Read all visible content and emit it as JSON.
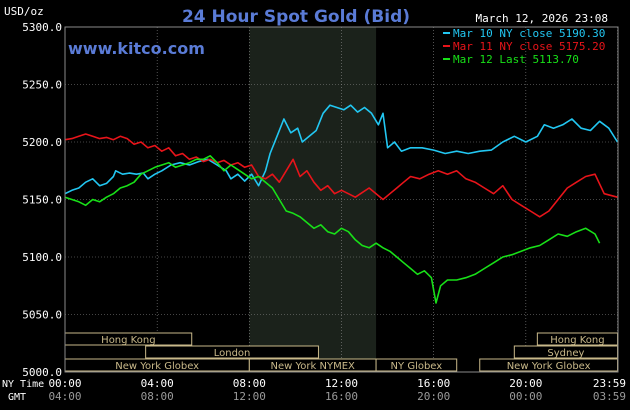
{
  "header": {
    "units": "USD/oz",
    "title": "24 Hour Spot Gold (Bid)",
    "timestamp": "March 12, 2026 23:08",
    "site": "www.kitco.com"
  },
  "colors": {
    "background": "#000000",
    "grid": "#8a8a8a",
    "text": "#ffffff",
    "title": "#5a7bd6",
    "site": "#5a7bd6",
    "highlight": "#1b221b",
    "session_fill": "#000000",
    "session_border": "#c9b98a",
    "session_text": "#c9b98a"
  },
  "chart_data": {
    "type": "line",
    "ylim": [
      5000,
      5300
    ],
    "xlim": [
      0,
      24
    ],
    "yticks": [
      {
        "value": 5000,
        "label": "5000.0"
      },
      {
        "value": 5050,
        "label": "5050.0"
      },
      {
        "value": 5100,
        "label": "5100.0"
      },
      {
        "value": 5150,
        "label": "5150.0"
      },
      {
        "value": 5200,
        "label": "5200.0"
      },
      {
        "value": 5250,
        "label": "5250.0"
      },
      {
        "value": 5300,
        "label": "5300.0"
      }
    ],
    "xticks": [
      {
        "hour": 0,
        "ny": "00:00",
        "gmt": "04:00"
      },
      {
        "hour": 4,
        "ny": "04:00",
        "gmt": "08:00"
      },
      {
        "hour": 8,
        "ny": "08:00",
        "gmt": "12:00"
      },
      {
        "hour": 12,
        "ny": "12:00",
        "gmt": "16:00"
      },
      {
        "hour": 16,
        "ny": "16:00",
        "gmt": "20:00"
      },
      {
        "hour": 20,
        "ny": "20:00",
        "gmt": "00:00"
      },
      {
        "hour": 23.98,
        "ny": "23:59",
        "gmt": "03:59"
      }
    ],
    "xaxis_row_labels": {
      "ny": "NY Time",
      "gmt": "GMT"
    },
    "highlight_range": [
      8,
      13.5
    ],
    "grid": true,
    "legend_position": "top-right",
    "sessions": [
      {
        "label": "Hong Kong",
        "start": 0,
        "end": 5.5,
        "row": 0
      },
      {
        "label": "Hong Kong",
        "start": 20.5,
        "end": 23.98,
        "row": 0
      },
      {
        "label": "London",
        "start": 3.5,
        "end": 11.0,
        "row": 1
      },
      {
        "label": "Sydney",
        "start": 19.5,
        "end": 23.98,
        "row": 1
      },
      {
        "label": "New York Globex",
        "start": 0,
        "end": 8.0,
        "row": 2
      },
      {
        "label": "New York NYMEX",
        "start": 8.0,
        "end": 13.5,
        "row": 2
      },
      {
        "label": "NY Globex",
        "start": 13.5,
        "end": 17.0,
        "row": 2
      },
      {
        "label": "New York Globex",
        "start": 18.0,
        "end": 23.98,
        "row": 2
      }
    ],
    "series": [
      {
        "name": "Mar 10 NY close 5190.30",
        "color": "#22c7f2",
        "x": [
          0,
          0.3,
          0.6,
          0.9,
          1.2,
          1.5,
          1.8,
          2.1,
          2.2,
          2.5,
          2.8,
          3.1,
          3.4,
          3.6,
          3.9,
          4.2,
          4.6,
          5.0,
          5.4,
          5.8,
          6.2,
          6.6,
          7.0,
          7.2,
          7.5,
          7.8,
          8.1,
          8.4,
          8.7,
          8.9,
          9.2,
          9.5,
          9.8,
          10.1,
          10.3,
          10.6,
          10.9,
          11.2,
          11.5,
          11.8,
          12.1,
          12.4,
          12.7,
          13.0,
          13.3,
          13.6,
          13.8,
          14.0,
          14.3,
          14.6,
          15.0,
          15.5,
          16.0,
          16.5,
          17.0,
          17.5,
          18.0,
          18.5,
          19.0,
          19.5,
          20.0,
          20.5,
          20.8,
          21.2,
          21.6,
          22.0,
          22.4,
          22.8,
          23.2,
          23.6,
          23.98
        ],
        "y": [
          5155,
          5158,
          5160,
          5165,
          5168,
          5162,
          5164,
          5170,
          5175,
          5172,
          5173,
          5172,
          5173,
          5168,
          5172,
          5175,
          5180,
          5182,
          5180,
          5183,
          5185,
          5180,
          5175,
          5168,
          5172,
          5166,
          5172,
          5162,
          5175,
          5190,
          5205,
          5220,
          5208,
          5212,
          5200,
          5205,
          5210,
          5225,
          5232,
          5230,
          5228,
          5232,
          5226,
          5230,
          5225,
          5215,
          5225,
          5195,
          5200,
          5192,
          5195,
          5195,
          5193,
          5190,
          5192,
          5190,
          5192,
          5193,
          5200,
          5205,
          5200,
          5205,
          5215,
          5212,
          5215,
          5220,
          5212,
          5210,
          5218,
          5212,
          5200
        ]
      },
      {
        "name": "Mar 11 NY close 5175.20",
        "color": "#e8141a",
        "x": [
          0,
          0.3,
          0.6,
          0.9,
          1.2,
          1.5,
          1.8,
          2.1,
          2.4,
          2.7,
          3.0,
          3.3,
          3.6,
          3.9,
          4.2,
          4.5,
          4.8,
          5.1,
          5.4,
          5.7,
          6.0,
          6.3,
          6.6,
          6.9,
          7.2,
          7.5,
          7.8,
          8.1,
          8.4,
          8.7,
          9.0,
          9.3,
          9.6,
          9.9,
          10.2,
          10.5,
          10.8,
          11.1,
          11.4,
          11.7,
          12.0,
          12.3,
          12.6,
          12.9,
          13.2,
          13.5,
          13.8,
          14.1,
          14.4,
          14.7,
          15.0,
          15.4,
          15.8,
          16.2,
          16.6,
          17.0,
          17.4,
          17.8,
          18.2,
          18.6,
          19.0,
          19.4,
          19.8,
          20.2,
          20.6,
          21.0,
          21.4,
          21.8,
          22.2,
          22.6,
          23.0,
          23.4,
          23.98
        ],
        "y": [
          5202,
          5203,
          5205,
          5207,
          5205,
          5203,
          5204,
          5202,
          5205,
          5203,
          5198,
          5200,
          5195,
          5197,
          5192,
          5195,
          5188,
          5190,
          5185,
          5187,
          5183,
          5185,
          5182,
          5184,
          5180,
          5182,
          5178,
          5180,
          5170,
          5168,
          5172,
          5165,
          5175,
          5185,
          5170,
          5175,
          5165,
          5158,
          5162,
          5155,
          5158,
          5155,
          5152,
          5156,
          5160,
          5155,
          5150,
          5155,
          5160,
          5165,
          5170,
          5168,
          5172,
          5175,
          5172,
          5175,
          5168,
          5165,
          5160,
          5155,
          5162,
          5150,
          5145,
          5140,
          5135,
          5140,
          5150,
          5160,
          5165,
          5170,
          5172,
          5155,
          5152
        ]
      },
      {
        "name": "Mar 12 Last 5113.70",
        "color": "#18e018",
        "x": [
          0,
          0.3,
          0.6,
          0.9,
          1.2,
          1.5,
          1.8,
          2.1,
          2.4,
          2.7,
          3.0,
          3.3,
          3.6,
          3.9,
          4.2,
          4.5,
          4.8,
          5.1,
          5.4,
          5.7,
          6.0,
          6.3,
          6.6,
          6.9,
          7.2,
          7.5,
          7.8,
          8.1,
          8.4,
          8.7,
          9.0,
          9.3,
          9.6,
          9.9,
          10.2,
          10.5,
          10.8,
          11.1,
          11.4,
          11.7,
          12.0,
          12.3,
          12.6,
          12.9,
          13.2,
          13.5,
          13.8,
          14.1,
          14.4,
          14.7,
          15.0,
          15.3,
          15.6,
          15.9,
          16.1,
          16.3,
          16.6,
          17.0,
          17.4,
          17.8,
          18.2,
          18.6,
          19.0,
          19.4,
          19.8,
          20.2,
          20.6,
          21.0,
          21.4,
          21.8,
          22.2,
          22.6,
          23.0,
          23.2
        ],
        "y": [
          5152,
          5150,
          5148,
          5145,
          5150,
          5148,
          5152,
          5155,
          5160,
          5162,
          5165,
          5172,
          5175,
          5178,
          5180,
          5182,
          5178,
          5180,
          5182,
          5185,
          5185,
          5188,
          5182,
          5175,
          5180,
          5176,
          5172,
          5168,
          5170,
          5165,
          5160,
          5150,
          5140,
          5138,
          5135,
          5130,
          5125,
          5128,
          5122,
          5120,
          5125,
          5122,
          5115,
          5110,
          5108,
          5112,
          5108,
          5105,
          5100,
          5095,
          5090,
          5085,
          5088,
          5082,
          5060,
          5075,
          5080,
          5080,
          5082,
          5085,
          5090,
          5095,
          5100,
          5102,
          5105,
          5108,
          5110,
          5115,
          5120,
          5118,
          5122,
          5125,
          5120,
          5112
        ]
      }
    ]
  }
}
